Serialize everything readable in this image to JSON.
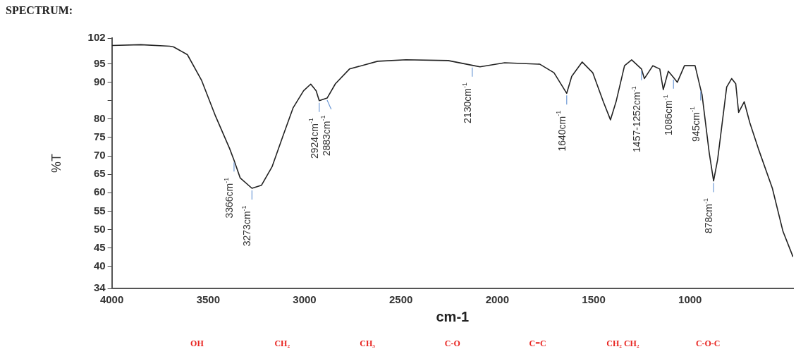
{
  "chart_data": {
    "type": "line",
    "title": "SPECTRUM:",
    "xlabel": "cm-1",
    "ylabel": "%T",
    "xlim": [
      4000,
      465
    ],
    "xticks": [
      4000,
      3500,
      3000,
      2500,
      2000,
      1500,
      1000
    ],
    "ylim": [
      34,
      102
    ],
    "yticks": [
      34,
      40,
      45,
      50,
      55,
      60,
      65,
      70,
      75,
      80,
      {
        "value": 85,
        "label": null
      },
      90,
      95,
      102
    ],
    "grid": false,
    "legend": false,
    "marker": "none",
    "line_style": "solid",
    "series": [
      {
        "color": "#222222",
        "x": [
          4000,
          3850,
          3700,
          3680,
          3608,
          3535,
          3462,
          3389,
          3366,
          3334,
          3273,
          3224,
          3169,
          3115,
          3060,
          3005,
          2968,
          2940,
          2924,
          2883,
          2840,
          2767,
          2621,
          2474,
          2255,
          2130,
          2090,
          1962,
          1779,
          1706,
          1640,
          1614,
          1560,
          1505,
          1450,
          1413,
          1384,
          1340,
          1303,
          1252,
          1237,
          1193,
          1157,
          1139,
          1113,
          1086,
          1066,
          1029,
          974,
          945,
          938,
          901,
          878,
          857,
          810,
          784,
          763,
          748,
          719,
          690,
          646,
          573,
          518,
          466
        ],
        "values": [
          100,
          100.2,
          99.8,
          99.6,
          97.5,
          90.6,
          80.8,
          72,
          68.8,
          64,
          61.2,
          62,
          67,
          75,
          83,
          87.7,
          89.5,
          87.7,
          85,
          85.7,
          89.6,
          93.6,
          95.7,
          96.1,
          95.9,
          94.6,
          94.2,
          95.3,
          94.9,
          92.6,
          87,
          91.6,
          95.5,
          92.6,
          84.7,
          79.8,
          84.7,
          94.5,
          96.1,
          93.6,
          91,
          94.5,
          93.6,
          88,
          93,
          91.3,
          90,
          94.5,
          94.5,
          88.1,
          86.7,
          71,
          63.2,
          69,
          88.7,
          91,
          89.6,
          81.8,
          84.7,
          79,
          72,
          61.2,
          49.5,
          42.6
        ]
      }
    ],
    "annotations": [
      {
        "text": "3366cm$^{-1}$",
        "x": 3366,
        "y": 68.8
      },
      {
        "text": "3273cm$^{-1}$",
        "x": 3273,
        "y": 61.2
      },
      {
        "text": "2924cm$^{-1}$",
        "x": 2924,
        "y": 85
      },
      {
        "text": "2883cm$^{-1}$",
        "x": 2883,
        "y": 85.7
      },
      {
        "text": "2130cm$^{-1}$",
        "x": 2130,
        "y": 94.6
      },
      {
        "text": "1640cm$^{-1}$",
        "x": 1640,
        "y": 87
      },
      {
        "text": "1457-1252cm$^{-1}$",
        "x": 1252,
        "y": 93.6
      },
      {
        "text": "1086cm$^{-1}$",
        "x": 1086,
        "y": 91.3
      },
      {
        "text": "945cm$^{-1}$",
        "x": 945,
        "y": 88.1
      },
      {
        "text": "878cm$^{-1}$",
        "x": 878,
        "y": 63.2
      },
      "OH",
      "CH₂",
      "CH₃",
      "C-O",
      "C=C",
      "CH₂ CH₂",
      "C-O-C"
    ]
  }
}
